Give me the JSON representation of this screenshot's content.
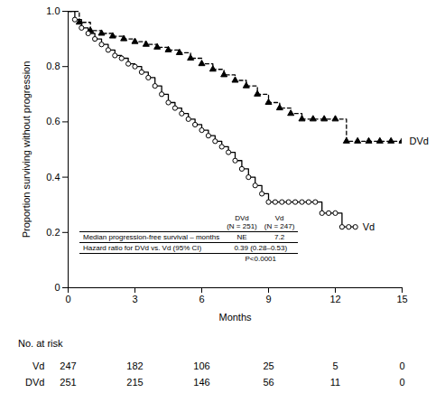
{
  "chart_data": {
    "type": "line",
    "line_style": "step",
    "x_label": "Months",
    "y_label": "Proportion surviving without progression",
    "xlim": [
      0,
      15
    ],
    "xticks": [
      0,
      3,
      6,
      9,
      12,
      15
    ],
    "ylim": [
      0,
      1
    ],
    "yticks": [
      0,
      0.2,
      0.4,
      0.6,
      0.8,
      {
        "value": 1,
        "label": "1.0"
      }
    ],
    "grid": false,
    "series": [
      {
        "name": "DVd",
        "color": "#000000",
        "line_style": "dashed",
        "marker": "triangle",
        "x": [
          0,
          0.5,
          1,
          1.5,
          2,
          2.5,
          3,
          3.5,
          4,
          4.5,
          5,
          5.5,
          6,
          6.5,
          7,
          7.5,
          8,
          8.5,
          9,
          9.5,
          10,
          10.5,
          11,
          11.5,
          12,
          12.5,
          13,
          13.5,
          14,
          14.5,
          15
        ],
        "values": [
          1,
          0.96,
          0.93,
          0.92,
          0.91,
          0.9,
          0.89,
          0.88,
          0.87,
          0.86,
          0.85,
          0.83,
          0.81,
          0.79,
          0.77,
          0.75,
          0.73,
          0.7,
          0.67,
          0.65,
          0.63,
          0.61,
          0.61,
          0.61,
          0.61,
          0.53,
          0.53,
          0.53,
          0.53,
          0.53,
          0.53
        ]
      },
      {
        "name": "Vd",
        "color": "#000000",
        "line_style": "solid",
        "marker": "circle_open",
        "x": [
          0,
          0.3,
          0.6,
          0.9,
          1.2,
          1.5,
          1.8,
          2.1,
          2.4,
          2.7,
          3,
          3.3,
          3.6,
          3.9,
          4.2,
          4.5,
          4.8,
          5.1,
          5.4,
          5.7,
          6,
          6.3,
          6.6,
          6.9,
          7.2,
          7.5,
          7.8,
          8.1,
          8.4,
          8.7,
          9,
          9.3,
          9.6,
          9.9,
          10.2,
          10.5,
          10.8,
          11.1,
          11.4,
          11.7,
          12,
          12.3,
          12.6,
          12.9
        ],
        "values": [
          1,
          0.97,
          0.94,
          0.92,
          0.9,
          0.88,
          0.86,
          0.84,
          0.83,
          0.81,
          0.8,
          0.78,
          0.76,
          0.73,
          0.7,
          0.67,
          0.65,
          0.63,
          0.61,
          0.59,
          0.57,
          0.55,
          0.53,
          0.51,
          0.49,
          0.46,
          0.43,
          0.4,
          0.37,
          0.34,
          0.31,
          0.31,
          0.31,
          0.31,
          0.31,
          0.31,
          0.31,
          0.31,
          0.27,
          0.27,
          0.27,
          0.22,
          0.22,
          0.22
        ]
      }
    ],
    "inset_table": {
      "header": [
        "",
        "DVd\n(N = 251)",
        "Vd\n(N = 247)"
      ],
      "rows": [
        [
          "Median progression-free survival – months",
          "NE",
          "7.2"
        ],
        [
          "Hazard ratio for DVd vs. Vd (95% CI)",
          "0.39 (0.28–0.53)"
        ],
        [
          "",
          "P<0.0001"
        ]
      ]
    },
    "at_risk": {
      "title": "No. at risk",
      "x": [
        0,
        3,
        6,
        9,
        12,
        15
      ],
      "rows": [
        {
          "name": "Vd",
          "values": [
            247,
            182,
            106,
            25,
            5,
            0
          ]
        },
        {
          "name": "DVd",
          "values": [
            251,
            215,
            146,
            56,
            11,
            0
          ]
        }
      ]
    }
  }
}
